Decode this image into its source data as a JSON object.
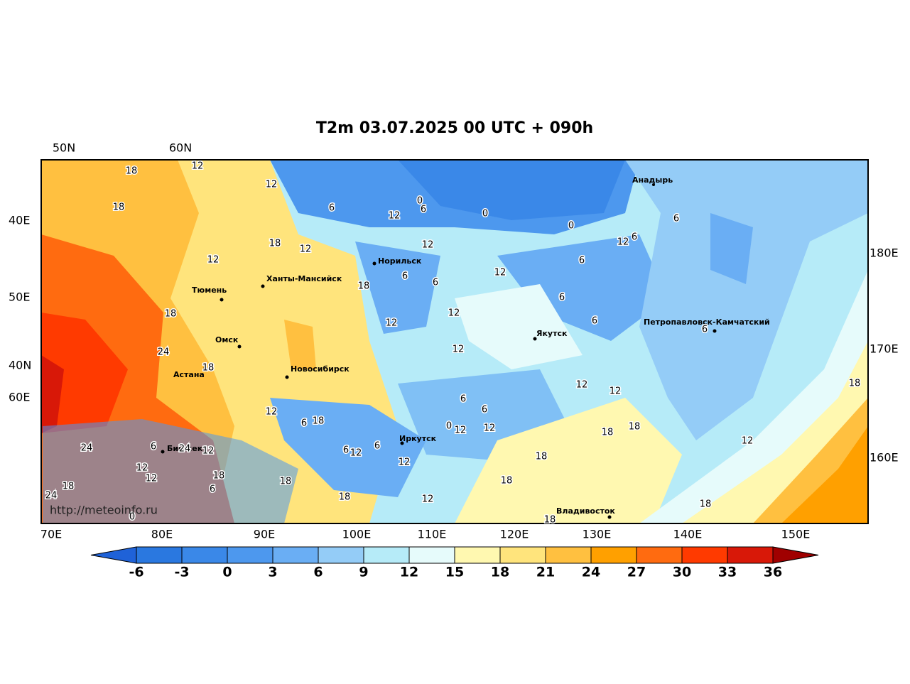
{
  "title": "T2m 03.07.2025 00 UTC + 090h",
  "graticule_labels": {
    "top": [
      "50N",
      "60N"
    ],
    "left": [
      "40E",
      "50E",
      "40N",
      "60E"
    ],
    "right": [
      "180E",
      "170E",
      "160E"
    ],
    "bottom": [
      "70E",
      "80E",
      "90E",
      "100E",
      "110E",
      "120E",
      "130E",
      "140E",
      "150E"
    ]
  },
  "cities": [
    "Анадырь",
    "Норильск",
    "Ханты-Мансийск",
    "Тюмень",
    "Омск",
    "Новосибирск",
    "Астана",
    "Якутск",
    "Петропавловск-Камчатский",
    "Бишкек",
    "Иркутск",
    "Владивосток"
  ],
  "contour_labels": [
    18,
    12,
    18,
    12,
    6,
    12,
    0,
    6,
    0,
    0,
    12,
    12,
    18,
    12,
    6,
    12,
    6,
    6,
    12,
    6,
    6,
    18,
    6,
    12,
    6,
    12,
    18,
    24,
    12,
    6,
    18,
    12,
    12,
    18,
    12,
    6,
    6,
    6,
    18,
    0,
    12,
    12,
    18,
    18,
    12,
    24,
    6,
    24,
    12,
    6,
    12,
    6,
    12,
    18,
    12,
    12,
    18,
    18,
    18,
    18,
    6,
    24,
    18,
    12,
    18,
    0,
    18
  ],
  "credit": "http://meteoinfo.ru",
  "colorbar": {
    "ticks": [
      -6,
      -3,
      0,
      3,
      6,
      9,
      12,
      15,
      18,
      21,
      24,
      27,
      30,
      33,
      36
    ],
    "colors": [
      "#1f62d8",
      "#2a78e0",
      "#3a88e8",
      "#4d98ee",
      "#6aaef4",
      "#94ccf7",
      "#b6ebf8",
      "#e6fbfb",
      "#fff8b0",
      "#ffe47c",
      "#ffc040",
      "#ffa000",
      "#ff6b10",
      "#ff3a00",
      "#d81808",
      "#a00000"
    ]
  }
}
